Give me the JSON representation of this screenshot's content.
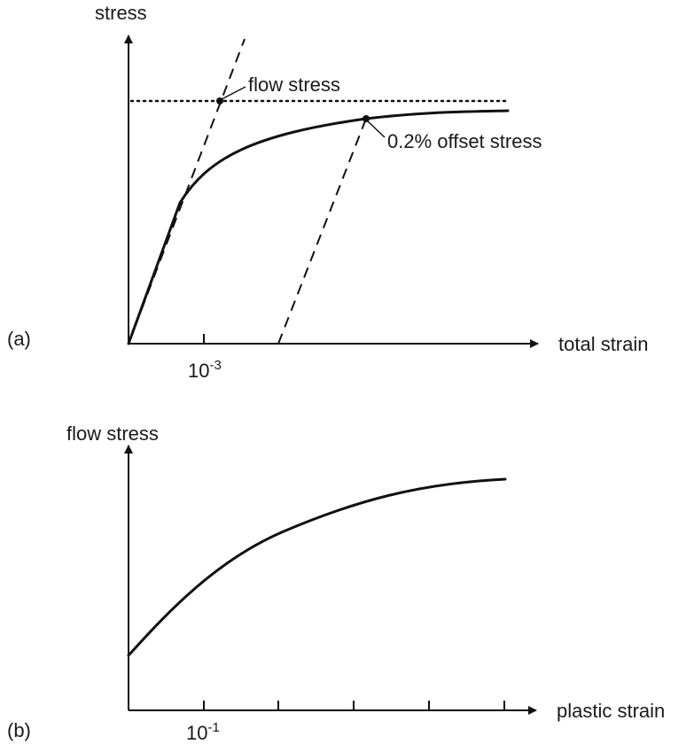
{
  "panel_a": {
    "tag": "(a)",
    "y_axis_label": "stress",
    "x_axis_label": "total strain",
    "tick_label_base": "10",
    "tick_label_exp": "-3",
    "annotations": {
      "flow_stress": "flow stress",
      "offset_stress": "0.2% offset stress"
    }
  },
  "panel_b": {
    "tag": "(b)",
    "y_axis_label": "flow stress",
    "x_axis_label": "plastic strain",
    "tick_label_base": "10",
    "tick_label_exp": "-1"
  }
}
